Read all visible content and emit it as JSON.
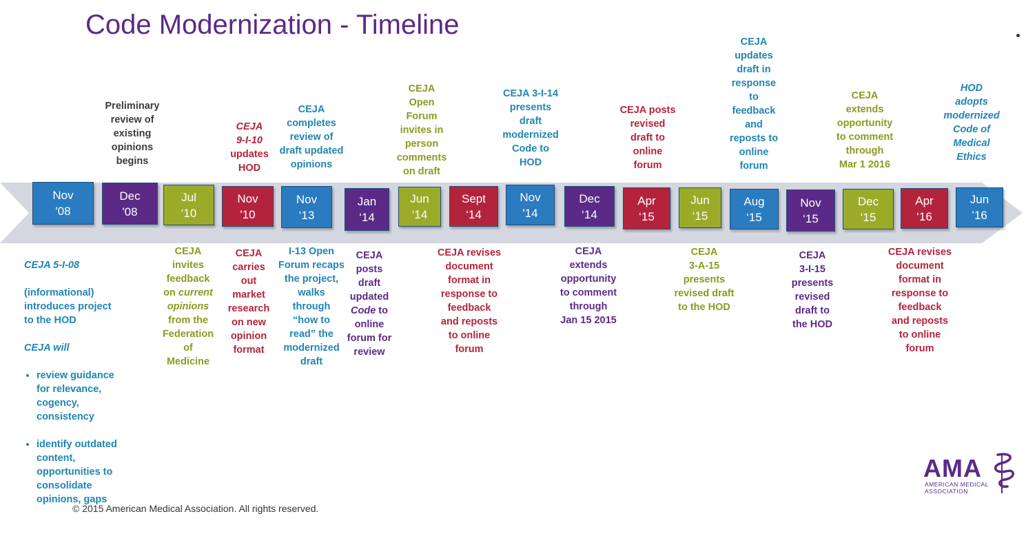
{
  "title": "Code Modernization - Timeline",
  "footer": "© 2015 American Medical Association. All rights reserved.",
  "logo": {
    "mark": "AMA",
    "sub": "AMERICAN MEDICAL ASSOCIATION"
  },
  "colors": {
    "blue": "#2a7bbf",
    "purple": "#5b2a86",
    "green": "#9aab2a",
    "red": "#b3243c",
    "arrow": "#d4d6e0"
  },
  "milestones": [
    {
      "date": "Nov\n'08",
      "color": "blue"
    },
    {
      "date": "Dec\n'08",
      "color": "purple"
    },
    {
      "date": "Jul\n‘10",
      "color": "green"
    },
    {
      "date": "Nov\n'10",
      "color": "red"
    },
    {
      "date": "Nov\n‘13",
      "color": "blue"
    },
    {
      "date": "Jan\n‘14",
      "color": "purple"
    },
    {
      "date": "Jun\n‘14",
      "color": "green"
    },
    {
      "date": "Sept\n‘14",
      "color": "red"
    },
    {
      "date": "Nov\n'14",
      "color": "blue"
    },
    {
      "date": "Dec\n‘14",
      "color": "purple"
    },
    {
      "date": "Apr\n‘15",
      "color": "red"
    },
    {
      "date": "Jun\n‘15",
      "color": "green"
    },
    {
      "date": "Aug\n‘15",
      "color": "blue"
    },
    {
      "date": "Nov\n‘15",
      "color": "purple"
    },
    {
      "date": "Dec\n‘15",
      "color": "green"
    },
    {
      "date": "Apr\n‘16",
      "color": "red"
    },
    {
      "date": "Jun\n’16",
      "color": "blue"
    }
  ],
  "above": {
    "dec08": "Preliminary\nreview of\nexisting\nopinions\nbegins",
    "nov10_italic": "CEJA\n9-I-10",
    "nov10_rest": "updates\nHOD",
    "nov13": "CEJA\ncompletes\nreview of\ndraft updated\nopinions",
    "jun14": "CEJA\nOpen\nForum\ninvites in\nperson\ncomments\non draft",
    "nov14": "CEJA 3-I-14\npresents\ndraft\nmodernized\nCode to\nHOD",
    "apr15": "CEJA posts\nrevised\ndraft to\nonline\nforum",
    "aug15": "CEJA\nupdates\ndraft in\nresponse\nto\nfeedback\nand\nreposts to\nonline\nforum",
    "dec15": "CEJA\nextends\nopportunity\nto comment\nthrough\nMar 1 2016",
    "jun16": "HOD\nadopts\nmodernized\nCode of\nMedical\nEthics"
  },
  "below": {
    "nov08_l1": "CEJA 5-I-08",
    "nov08_l2": "(informational)\nintroduces project\nto the HOD",
    "nov08_l3": "CEJA will",
    "nov08_b1": "review guidance for relevance, cogency, consistency",
    "nov08_b2": "identify outdated content, opportunities to consolidate opinions, gaps",
    "jul10_a": "CEJA\ninvites\nfeedback\non",
    "jul10_i": "current\nopinions",
    "jul10_b": "from the\nFederation\nof\nMedicine",
    "nov10": "CEJA\ncarries\nout\nmarket\nresearch\non new\nopinion\nformat",
    "nov13": "I-13 Open\nForum recaps\nthe project,\nwalks\nthrough\n“how to\nread” the\nmodernized\ndraft",
    "jan14_a": "CEJA\nposts\ndraft\nupdated",
    "jan14_i": "Code",
    "jan14_b": "to\nonline\nforum for\nreview",
    "sept14": "CEJA revises\ndocument\nformat in\nresponse to\nfeedback\nand reposts\nto online\nforum",
    "dec14": "CEJA\nextends\nopportunity\nto comment\nthrough\nJan 15 2015",
    "jun15": "CEJA\n3-A-15\npresents\nrevised draft\nto the HOD",
    "nov15": "CEJA\n3-I-15\npresents\nrevised\ndraft to\nthe HOD",
    "apr16": "CEJA revises\ndocument\nformat in\nresponse to\nfeedback\nand reposts\nto online\nforum"
  }
}
